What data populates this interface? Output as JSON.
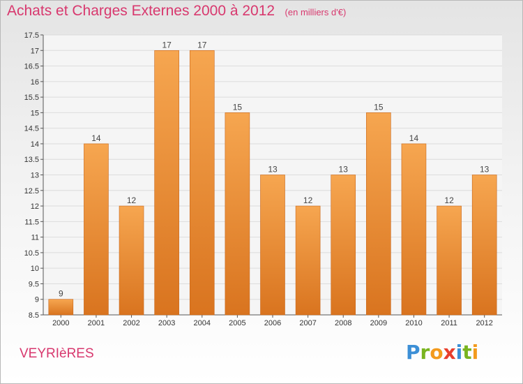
{
  "title": "Achats et Charges Externes 2000 à 2012",
  "unit_note": "(en milliers d'€)",
  "town": "VEYRIèRES",
  "logo_text": "Proxiti",
  "colors": {
    "title": "#d8386e",
    "bar_light": "#f6a650",
    "bar_dark": "#d9741f",
    "logo_letters": [
      "#3c8fd6",
      "#79b41f",
      "#f39a1d",
      "#e83e2c",
      "#3c8fd6",
      "#79b41f",
      "#f39a1d"
    ]
  },
  "chart_data": {
    "type": "bar",
    "categories": [
      "2000",
      "2001",
      "2002",
      "2003",
      "2004",
      "2005",
      "2006",
      "2007",
      "2008",
      "2009",
      "2010",
      "2011",
      "2012"
    ],
    "values": [
      9,
      14,
      12,
      17,
      17,
      15,
      13,
      12,
      13,
      15,
      14,
      12,
      13
    ],
    "data_labels": [
      "9",
      "14",
      "12",
      "17",
      "17",
      "15",
      "13",
      "12",
      "13",
      "15",
      "14",
      "12",
      "13"
    ],
    "ylim": [
      8.5,
      17.5
    ],
    "yticks": [
      "8.5",
      "9",
      "9.5",
      "10",
      "10.5",
      "11",
      "11.5",
      "12",
      "12.5",
      "13",
      "13.5",
      "14",
      "14.5",
      "15",
      "15.5",
      "16",
      "16.5",
      "17",
      "17.5"
    ],
    "grid": true,
    "legend": "none"
  }
}
